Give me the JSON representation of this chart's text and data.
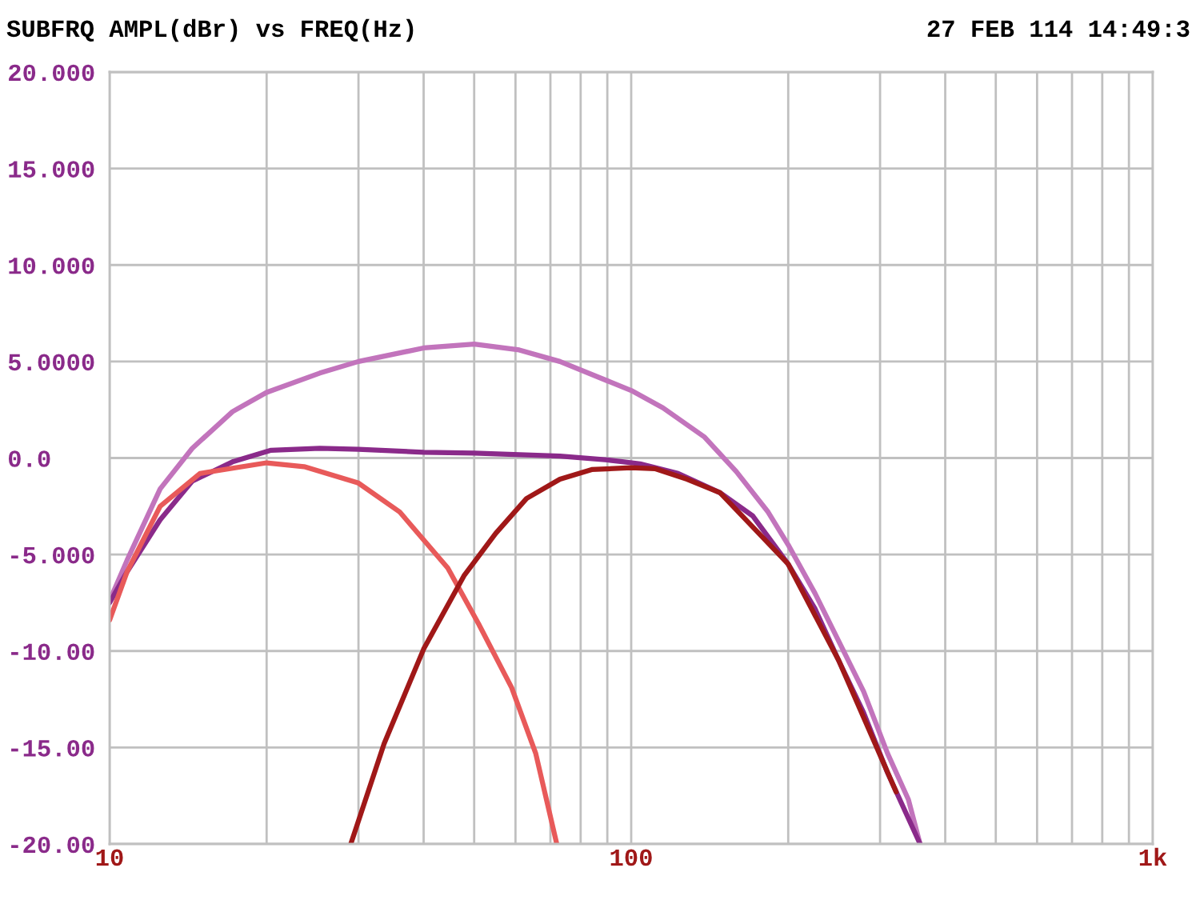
{
  "chart_data": {
    "type": "line",
    "title": "SUBFRQ AMPL(dBr) vs FREQ(Hz)",
    "annotations": [
      "27 FEB 114 14:49:3"
    ],
    "log": "x",
    "grid": true,
    "legend": false,
    "marker": "none",
    "line_style": "solid",
    "xlim": [
      10,
      1000
    ],
    "xticks": [
      10,
      {
        "value": 20,
        "label": null
      },
      {
        "value": 30,
        "label": null
      },
      {
        "value": 40,
        "label": null
      },
      {
        "value": 50,
        "label": null
      },
      {
        "value": 60,
        "label": null
      },
      {
        "value": 70,
        "label": null
      },
      {
        "value": 80,
        "label": null
      },
      {
        "value": 90,
        "label": null
      },
      100,
      {
        "value": 200,
        "label": null
      },
      {
        "value": 300,
        "label": null
      },
      {
        "value": 400,
        "label": null
      },
      {
        "value": 500,
        "label": null
      },
      {
        "value": 600,
        "label": null
      },
      {
        "value": 700,
        "label": null
      },
      {
        "value": 800,
        "label": null
      },
      {
        "value": 900,
        "label": null
      },
      {
        "value": 1000,
        "label": "1k"
      }
    ],
    "ylim": [
      -20,
      20
    ],
    "yticks": [
      {
        "value": -20,
        "label": "-20.00"
      },
      {
        "value": -15,
        "label": "-15.00"
      },
      {
        "value": -10,
        "label": "-10.00"
      },
      {
        "value": -5,
        "label": "-5.000"
      },
      {
        "value": 0,
        "label": "0.0"
      },
      {
        "value": 5,
        "label": "5.0000"
      },
      {
        "value": 10,
        "label": "10.000"
      },
      {
        "value": 15,
        "label": "15.000"
      },
      {
        "value": 20,
        "label": "20.000"
      }
    ],
    "series": [
      {
        "color": "#c274bc",
        "x": [
          10,
          10.8,
          12.5,
          14.4,
          17.2,
          20,
          25.3,
          30,
          40,
          50,
          61,
          73,
          90,
          100,
          115,
          138,
          159,
          183,
          200,
          225,
          250,
          279,
          310,
          340,
          358
        ],
        "values": [
          -7.4,
          -5.3,
          -1.6,
          0.5,
          2.4,
          3.4,
          4.4,
          5.0,
          5.7,
          5.9,
          5.6,
          5.0,
          4.0,
          3.5,
          2.6,
          1.1,
          -0.7,
          -2.8,
          -4.5,
          -7.0,
          -9.5,
          -12.1,
          -15.3,
          -17.7,
          -20.0
        ]
      },
      {
        "color": "#8a2a8a",
        "x": [
          10,
          10.8,
          12.5,
          14.4,
          17.2,
          20.4,
          25.3,
          30,
          40,
          50,
          73,
          90,
          104,
          123,
          148,
          171,
          200,
          225,
          250,
          279,
          310,
          358
        ],
        "values": [
          -7.5,
          -5.9,
          -3.2,
          -1.2,
          -0.2,
          0.4,
          0.5,
          0.45,
          0.3,
          0.25,
          0.1,
          -0.1,
          -0.3,
          -0.8,
          -1.8,
          -3.0,
          -5.5,
          -7.8,
          -10.5,
          -13.2,
          -16.3,
          -20.0
        ]
      },
      {
        "color": "#e85a5a",
        "x": [
          10,
          10.8,
          12.5,
          14.9,
          20,
          23.6,
          30,
          36,
          44.5,
          51,
          59,
          65.6,
          72
        ],
        "values": [
          -8.4,
          -5.9,
          -2.5,
          -0.8,
          -0.25,
          -0.45,
          -1.3,
          -2.8,
          -5.7,
          -8.6,
          -11.9,
          -15.3,
          -20.0
        ]
      },
      {
        "color": "#a01818",
        "x": [
          29,
          33.6,
          40,
          47.8,
          55,
          63,
          73,
          84,
          100,
          111,
          128,
          148,
          200,
          250,
          322
        ],
        "values": [
          -20,
          -14.8,
          -9.9,
          -6.1,
          -3.9,
          -2.1,
          -1.1,
          -0.6,
          -0.5,
          -0.55,
          -1.1,
          -1.8,
          -5.5,
          -10.5,
          -17.3
        ]
      }
    ]
  }
}
